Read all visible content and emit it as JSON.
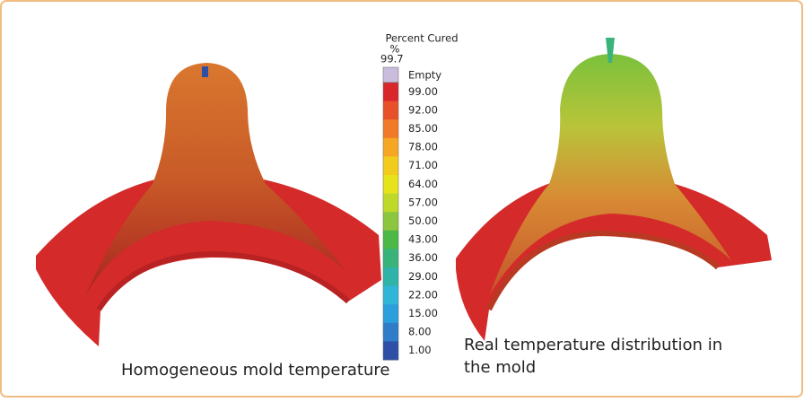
{
  "legend": {
    "title": "Percent Cured",
    "unit": "%",
    "max": "99.7",
    "empty": "Empty",
    "bands": [
      {
        "label": "99.00",
        "color": "#d9262b"
      },
      {
        "label": "92.00",
        "color": "#e8502a"
      },
      {
        "label": "85.00",
        "color": "#f07a27"
      },
      {
        "label": "78.00",
        "color": "#f5a623"
      },
      {
        "label": "71.00",
        "color": "#f2cc1d"
      },
      {
        "label": "64.00",
        "color": "#e6e21c"
      },
      {
        "label": "57.00",
        "color": "#bfd92a"
      },
      {
        "label": "50.00",
        "color": "#8cc63f"
      },
      {
        "label": "43.00",
        "color": "#4cb848"
      },
      {
        "label": "36.00",
        "color": "#3ab37a"
      },
      {
        "label": "29.00",
        "color": "#2fb3a8"
      },
      {
        "label": "22.00",
        "color": "#2fb6d6"
      },
      {
        "label": "15.00",
        "color": "#2a9fdc"
      },
      {
        "label": "8.00",
        "color": "#2f7cc8"
      },
      {
        "label": "1.00",
        "color": "#2d4fa6"
      }
    ]
  },
  "captions": {
    "left": "Homogeneous mold temperature",
    "right": [
      "Real temperature distribution in",
      "the mold"
    ]
  }
}
